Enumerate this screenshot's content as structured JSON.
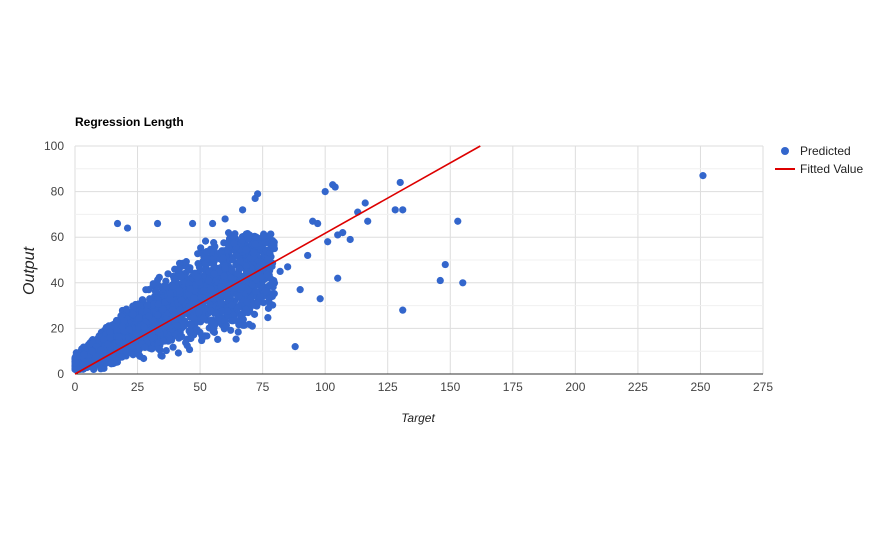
{
  "chart_data": {
    "type": "scatter",
    "title": "Regression Length",
    "xlabel": "Target",
    "ylabel": "Output",
    "xlim": [
      0,
      275
    ],
    "ylim": [
      0,
      100
    ],
    "x_ticks": [
      0,
      25,
      50,
      75,
      100,
      125,
      150,
      175,
      200,
      225,
      250,
      275
    ],
    "y_ticks": [
      0,
      20,
      40,
      60,
      80,
      100
    ],
    "grid": true,
    "legend_position": "right",
    "series": [
      {
        "name": "Predicted",
        "kind": "points",
        "color": "#3366cc",
        "x": [
          17,
          21,
          33,
          47,
          55,
          60,
          67,
          72,
          73,
          75,
          79,
          82,
          85,
          88,
          90,
          93,
          95,
          97,
          98,
          100,
          101,
          103,
          104,
          105,
          105,
          107,
          110,
          113,
          116,
          117,
          128,
          130,
          131,
          131,
          146,
          148,
          153,
          155,
          251
        ],
        "y": [
          66,
          64,
          66,
          66,
          66,
          68,
          72,
          77,
          79,
          60,
          55,
          45,
          47,
          12,
          37,
          52,
          67,
          66,
          33,
          80,
          58,
          83,
          82,
          61,
          42,
          62,
          59,
          71,
          75,
          67,
          72,
          84,
          72,
          28,
          41,
          48,
          67,
          40,
          87
        ]
      },
      {
        "name": "Fitted Value",
        "kind": "line",
        "color": "#dd0000",
        "x": [
          0,
          162
        ],
        "y": [
          0,
          100
        ]
      }
    ],
    "dense_cluster": {
      "x_range": [
        0,
        80
      ],
      "y_range": [
        2,
        62
      ]
    }
  }
}
